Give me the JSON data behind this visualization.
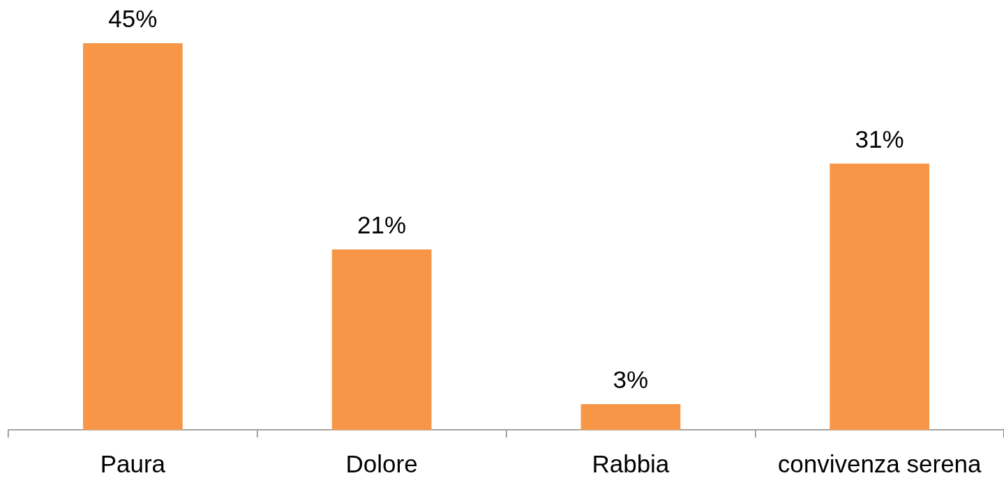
{
  "chart_data": {
    "type": "bar",
    "categories": [
      "Paura",
      "Dolore",
      "Rabbia",
      "convivenza serena"
    ],
    "values": [
      45,
      21,
      3,
      31
    ],
    "value_labels": [
      "45%",
      "21%",
      "3%",
      "31%"
    ],
    "color": "#f79646"
  }
}
